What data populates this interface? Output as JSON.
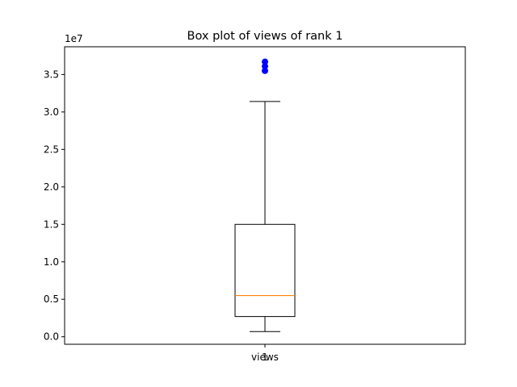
{
  "chart_data": {
    "type": "box",
    "title": "Box plot of views of rank 1",
    "xlabel": "",
    "ylabel": "",
    "y_multiplier_label": "1e7",
    "y_scale": 10000000,
    "ylim": [
      -0.1,
      3.87
    ],
    "y_ticks": [
      0.0,
      0.5,
      1.0,
      1.5,
      2.0,
      2.5,
      3.0,
      3.5
    ],
    "y_tick_labels": [
      "0.0",
      "0.5",
      "1.0",
      "1.5",
      "2.0",
      "2.5",
      "3.0",
      "3.5"
    ],
    "x_tick_positions_label": "1",
    "categories": [
      "views"
    ],
    "grid": false,
    "boxes": [
      {
        "name": "views",
        "whisker_low": 700000,
        "q1": 2700000,
        "median": 5500000,
        "q3": 15000000,
        "whisker_high": 31400000,
        "outliers": [
          35500000,
          36100000,
          36700000
        ]
      }
    ],
    "colors": {
      "median": "#ff7f0e",
      "outlier": "#0000ff",
      "box": "#000000"
    }
  }
}
